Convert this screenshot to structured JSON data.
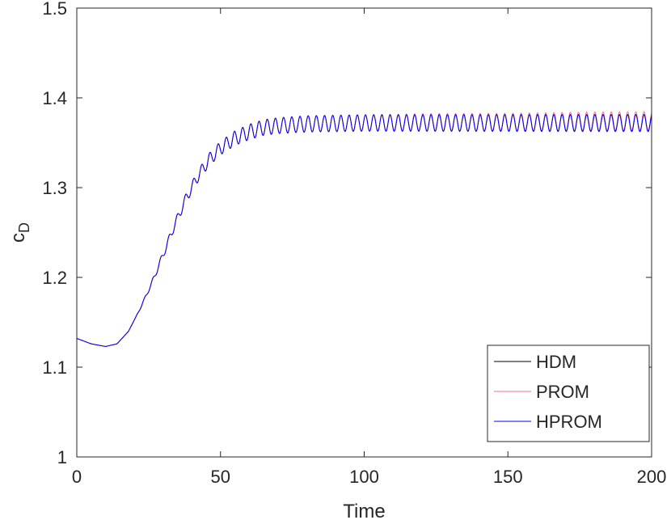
{
  "chart_data": {
    "type": "line",
    "title": "",
    "xlabel": "Time",
    "ylabel_main": "c",
    "ylabel_sub": "D",
    "xlim": [
      0,
      200
    ],
    "ylim": [
      1.0,
      1.5
    ],
    "xticks": [
      0,
      50,
      100,
      150,
      200
    ],
    "xtick_labels": [
      "0",
      "50",
      "100",
      "150",
      "200"
    ],
    "yticks": [
      1.0,
      1.1,
      1.2,
      1.3,
      1.4,
      1.5
    ],
    "ytick_labels": [
      "1",
      "1.1",
      "1.2",
      "1.3",
      "1.4",
      "1.5"
    ],
    "grid": false,
    "legend_position": "bottom-right",
    "series": [
      {
        "name": "HDM",
        "color": "#000000",
        "x": [
          0,
          5,
          10,
          14,
          18,
          22,
          26,
          30,
          34,
          38,
          42,
          46,
          50,
          55,
          60,
          65,
          70,
          80,
          100,
          120,
          150,
          180,
          200
        ],
        "y": [
          1.132,
          1.126,
          1.123,
          1.126,
          1.14,
          1.165,
          1.193,
          1.225,
          1.258,
          1.288,
          1.312,
          1.331,
          1.344,
          1.355,
          1.362,
          1.367,
          1.369,
          1.371,
          1.372,
          1.372,
          1.372,
          1.372,
          1.372
        ],
        "osc_period": 2.85,
        "osc_amplitude": [
          [
            0,
            0
          ],
          [
            20,
            0
          ],
          [
            30,
            0.004
          ],
          [
            45,
            0.007
          ],
          [
            60,
            0.0085
          ],
          [
            80,
            0.009
          ],
          [
            200,
            0.0095
          ]
        ]
      },
      {
        "name": "PROM",
        "color": "#ff6b8a",
        "x": [
          0,
          5,
          10,
          14,
          18,
          22,
          26,
          30,
          34,
          38,
          42,
          46,
          50,
          55,
          60,
          65,
          70,
          80,
          100,
          120,
          150,
          180,
          200
        ],
        "y": [
          1.132,
          1.126,
          1.123,
          1.126,
          1.14,
          1.165,
          1.193,
          1.225,
          1.258,
          1.288,
          1.312,
          1.331,
          1.344,
          1.355,
          1.362,
          1.367,
          1.369,
          1.371,
          1.372,
          1.373,
          1.373,
          1.374,
          1.374
        ],
        "osc_period": 2.85,
        "osc_amplitude": [
          [
            0,
            0
          ],
          [
            20,
            0
          ],
          [
            30,
            0.004
          ],
          [
            45,
            0.007
          ],
          [
            60,
            0.0085
          ],
          [
            80,
            0.009
          ],
          [
            200,
            0.0105
          ]
        ]
      },
      {
        "name": "HPROM",
        "color": "#0000ff",
        "x": [
          0,
          5,
          10,
          14,
          18,
          22,
          26,
          30,
          34,
          38,
          42,
          46,
          50,
          55,
          60,
          65,
          70,
          80,
          100,
          120,
          150,
          180,
          200
        ],
        "y": [
          1.132,
          1.126,
          1.123,
          1.126,
          1.14,
          1.165,
          1.193,
          1.225,
          1.258,
          1.288,
          1.312,
          1.331,
          1.344,
          1.355,
          1.362,
          1.367,
          1.369,
          1.371,
          1.372,
          1.372,
          1.372,
          1.372,
          1.372
        ],
        "osc_period": 2.85,
        "osc_amplitude": [
          [
            0,
            0
          ],
          [
            20,
            0
          ],
          [
            30,
            0.004
          ],
          [
            45,
            0.007
          ],
          [
            60,
            0.0085
          ],
          [
            80,
            0.009
          ],
          [
            200,
            0.0095
          ]
        ]
      }
    ]
  }
}
